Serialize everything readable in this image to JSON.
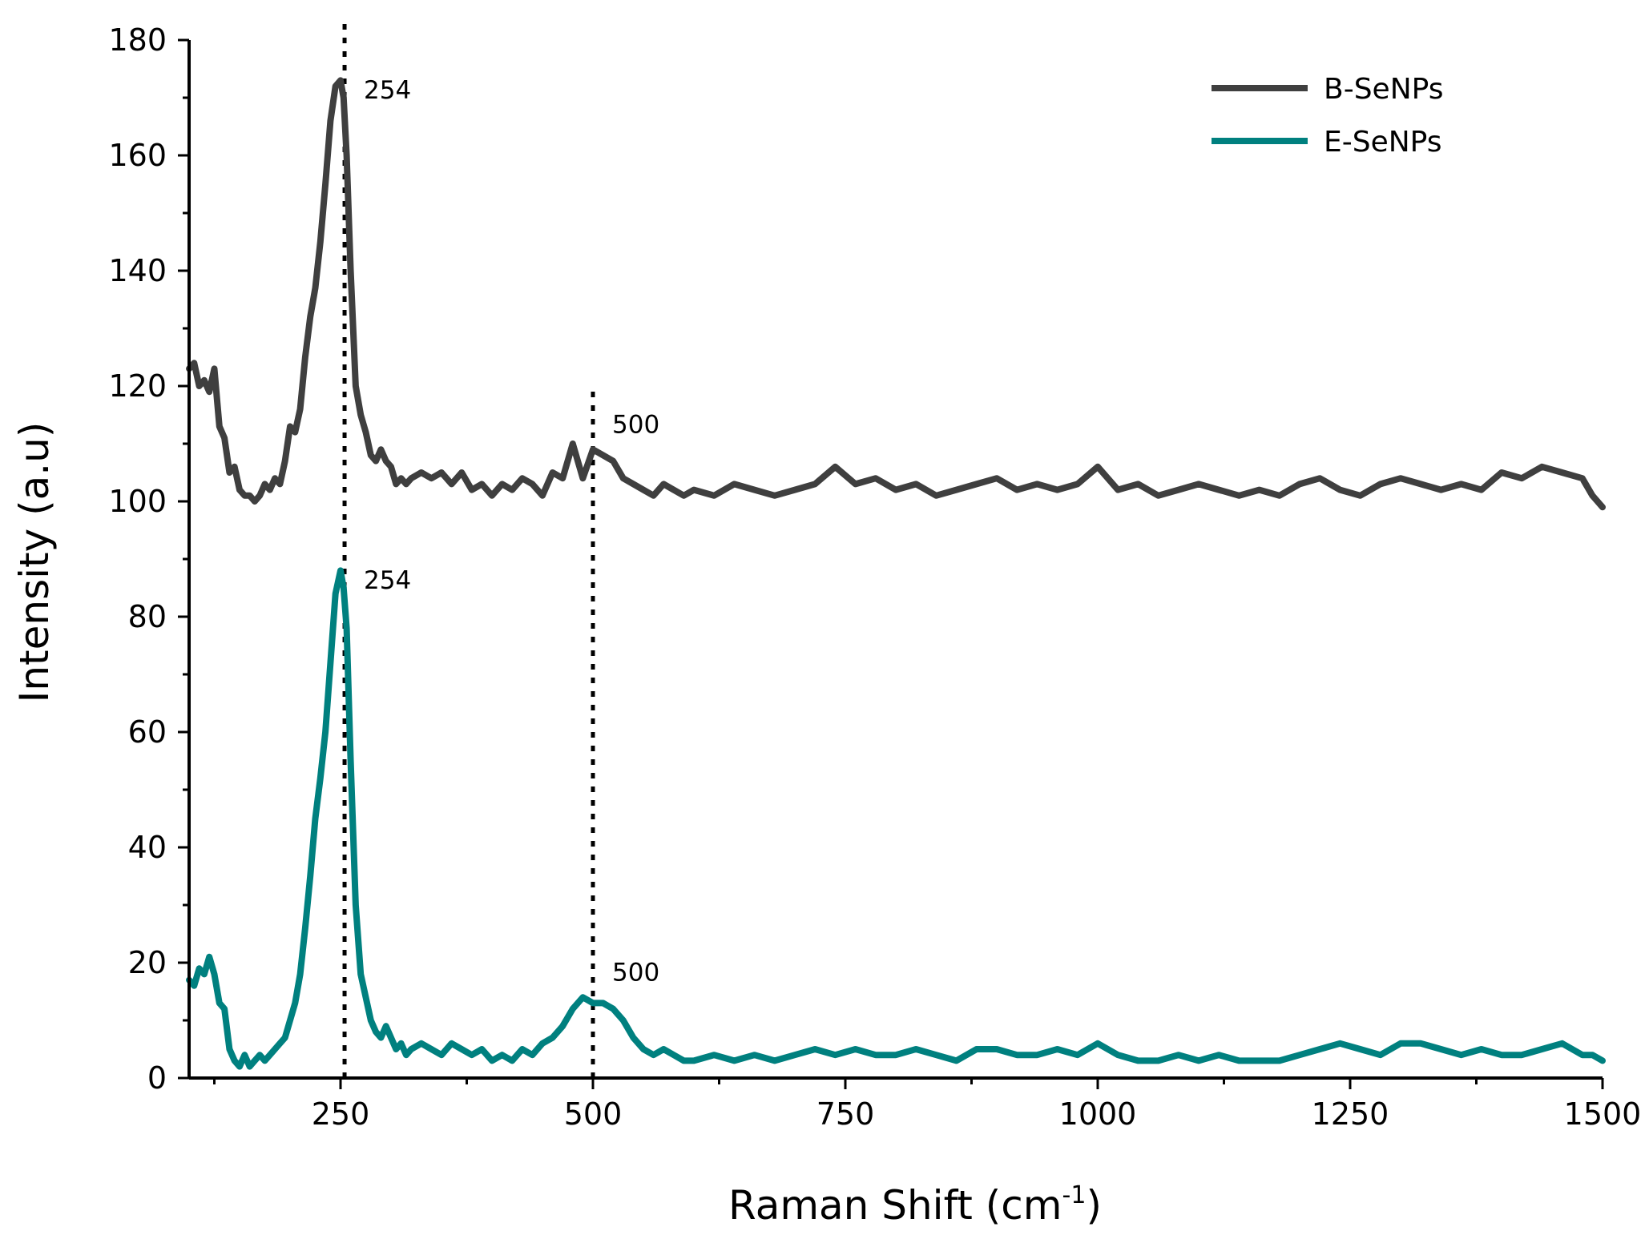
{
  "chart_data": {
    "type": "line",
    "title": "",
    "xlabel": "Raman Shift (cm",
    "xlabel_sup": "-1",
    "xlabel_close": ")",
    "ylabel": "Intensity (a.u)",
    "xlim": [
      100,
      1500
    ],
    "ylim": [
      0,
      180
    ],
    "x_ticks": [
      250,
      500,
      750,
      1000,
      1250,
      1500
    ],
    "x_tick_labels": [
      "250",
      "500",
      "750",
      "1000",
      "1250",
      "1500"
    ],
    "y_ticks": [
      0,
      20,
      40,
      60,
      80,
      100,
      120,
      140,
      160,
      180
    ],
    "y_tick_labels": [
      "0",
      "20",
      "40",
      "60",
      "80",
      "100",
      "120",
      "140",
      "160",
      "180"
    ],
    "grid": false,
    "legend_position": "top-right",
    "reference_lines": [
      {
        "x": 254,
        "style": "dotted",
        "y_range": [
          0,
          180
        ]
      },
      {
        "x": 500,
        "style": "dotted",
        "y_range": [
          0,
          117
        ]
      }
    ],
    "annotations": [
      {
        "text": "254",
        "x": 254,
        "y": 171
      },
      {
        "text": "500",
        "x": 500,
        "y": 113
      },
      {
        "text": "254",
        "x": 254,
        "y": 86
      },
      {
        "text": "500",
        "x": 500,
        "y": 18
      }
    ],
    "series": [
      {
        "name": "B-SeNPs",
        "color": "#3f3f3f",
        "x": [
          100,
          105,
          110,
          115,
          120,
          125,
          130,
          135,
          140,
          145,
          150,
          155,
          160,
          165,
          170,
          175,
          180,
          185,
          190,
          195,
          200,
          205,
          210,
          215,
          220,
          225,
          230,
          235,
          240,
          245,
          250,
          253,
          256,
          260,
          265,
          270,
          275,
          280,
          285,
          290,
          295,
          300,
          305,
          310,
          315,
          320,
          330,
          340,
          350,
          360,
          370,
          380,
          390,
          400,
          410,
          420,
          430,
          440,
          450,
          460,
          470,
          480,
          490,
          500,
          510,
          520,
          530,
          540,
          550,
          560,
          570,
          580,
          590,
          600,
          620,
          640,
          660,
          680,
          700,
          720,
          740,
          760,
          780,
          800,
          820,
          840,
          860,
          880,
          900,
          920,
          940,
          960,
          980,
          1000,
          1020,
          1040,
          1060,
          1080,
          1100,
          1120,
          1140,
          1160,
          1180,
          1200,
          1220,
          1240,
          1260,
          1280,
          1300,
          1320,
          1340,
          1360,
          1380,
          1400,
          1420,
          1440,
          1460,
          1480,
          1490,
          1500
        ],
        "y": [
          123,
          124,
          120,
          121,
          119,
          123,
          113,
          111,
          105,
          106,
          102,
          101,
          101,
          100,
          101,
          103,
          102,
          104,
          103,
          107,
          113,
          112,
          116,
          125,
          132,
          137,
          145,
          155,
          166,
          172,
          173,
          170,
          160,
          140,
          120,
          115,
          112,
          108,
          107,
          109,
          107,
          106,
          103,
          104,
          103,
          104,
          105,
          104,
          105,
          103,
          105,
          102,
          103,
          101,
          103,
          102,
          104,
          103,
          101,
          105,
          104,
          110,
          104,
          109,
          108,
          107,
          104,
          103,
          102,
          101,
          103,
          102,
          101,
          102,
          101,
          103,
          102,
          101,
          102,
          103,
          106,
          103,
          104,
          102,
          103,
          101,
          102,
          103,
          104,
          102,
          103,
          102,
          103,
          106,
          102,
          103,
          101,
          102,
          103,
          102,
          101,
          102,
          101,
          103,
          104,
          102,
          101,
          103,
          104,
          103,
          102,
          103,
          102,
          105,
          104,
          106,
          105,
          104,
          101,
          99
        ]
      },
      {
        "name": "E-SeNPs",
        "color": "#00807f",
        "x": [
          100,
          105,
          110,
          115,
          120,
          125,
          130,
          135,
          140,
          145,
          150,
          155,
          160,
          165,
          170,
          175,
          180,
          185,
          190,
          195,
          200,
          205,
          210,
          215,
          220,
          225,
          230,
          235,
          240,
          245,
          250,
          253,
          256,
          260,
          265,
          270,
          275,
          280,
          285,
          290,
          295,
          300,
          305,
          310,
          315,
          320,
          330,
          340,
          350,
          360,
          370,
          380,
          390,
          400,
          410,
          420,
          430,
          440,
          450,
          460,
          470,
          480,
          490,
          500,
          510,
          520,
          530,
          540,
          550,
          560,
          570,
          580,
          590,
          600,
          620,
          640,
          660,
          680,
          700,
          720,
          740,
          760,
          780,
          800,
          820,
          840,
          860,
          880,
          900,
          920,
          940,
          960,
          980,
          1000,
          1020,
          1040,
          1060,
          1080,
          1100,
          1120,
          1140,
          1160,
          1180,
          1200,
          1220,
          1240,
          1260,
          1280,
          1300,
          1320,
          1340,
          1360,
          1380,
          1400,
          1420,
          1440,
          1460,
          1480,
          1490,
          1500
        ],
        "y": [
          17,
          16,
          19,
          18,
          21,
          18,
          13,
          12,
          5,
          3,
          2,
          4,
          2,
          3,
          4,
          3,
          4,
          5,
          6,
          7,
          10,
          13,
          18,
          26,
          35,
          45,
          52,
          60,
          72,
          84,
          88,
          85,
          78,
          55,
          30,
          18,
          14,
          10,
          8,
          7,
          9,
          7,
          5,
          6,
          4,
          5,
          6,
          5,
          4,
          6,
          5,
          4,
          5,
          3,
          4,
          3,
          5,
          4,
          6,
          7,
          9,
          12,
          14,
          13,
          13,
          12,
          10,
          7,
          5,
          4,
          5,
          4,
          3,
          3,
          4,
          3,
          4,
          3,
          4,
          5,
          4,
          5,
          4,
          4,
          5,
          4,
          3,
          5,
          5,
          4,
          4,
          5,
          4,
          6,
          4,
          3,
          3,
          4,
          3,
          4,
          3,
          3,
          3,
          4,
          5,
          6,
          5,
          4,
          6,
          6,
          5,
          4,
          5,
          4,
          4,
          5,
          6,
          4,
          4,
          3
        ]
      }
    ]
  }
}
